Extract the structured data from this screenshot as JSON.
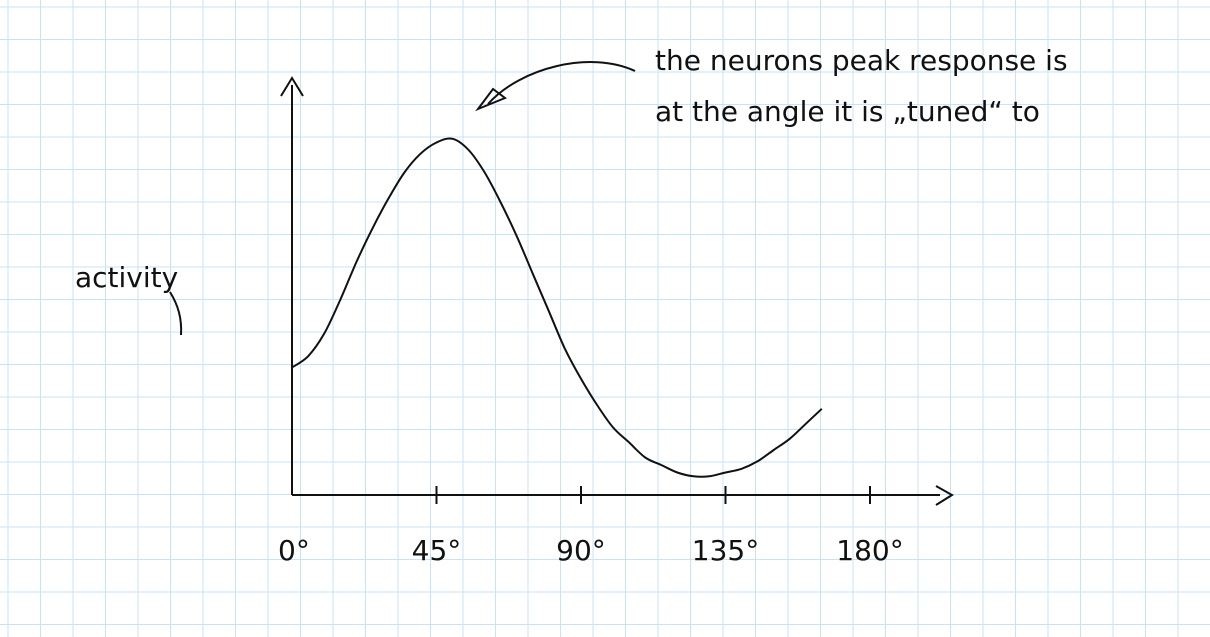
{
  "chart_data": {
    "type": "line",
    "xlabel": "",
    "ylabel": "activity",
    "x_ticks": [
      "0°",
      "45°",
      "90°",
      "135°",
      "180°"
    ],
    "x_tick_values": [
      0,
      45,
      90,
      135,
      180
    ],
    "series": [
      {
        "x": [
          0,
          5,
          10,
          15,
          20,
          25,
          30,
          35,
          40,
          45,
          50,
          55,
          60,
          65,
          70,
          75,
          80,
          85,
          90,
          95,
          100,
          105,
          110,
          115,
          120,
          125,
          130,
          135,
          140,
          145,
          150,
          155,
          160,
          165
        ],
        "values": [
          0.34,
          0.37,
          0.43,
          0.52,
          0.62,
          0.71,
          0.79,
          0.86,
          0.91,
          0.94,
          0.95,
          0.92,
          0.86,
          0.78,
          0.69,
          0.59,
          0.49,
          0.39,
          0.31,
          0.24,
          0.18,
          0.14,
          0.1,
          0.08,
          0.06,
          0.05,
          0.05,
          0.06,
          0.07,
          0.09,
          0.12,
          0.15,
          0.19,
          0.23
        ]
      }
    ],
    "xlim": [
      0,
      180
    ],
    "ylim": [
      0,
      1
    ],
    "grid": true,
    "annotation": {
      "line1": "the neurons peak response is",
      "line2": "at the angle it is „tuned“ to"
    }
  }
}
